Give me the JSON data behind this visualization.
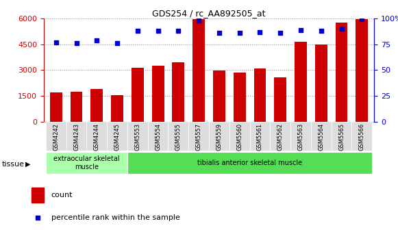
{
  "title": "GDS254 / rc_AA892505_at",
  "samples": [
    "GSM4242",
    "GSM4243",
    "GSM4244",
    "GSM4245",
    "GSM5553",
    "GSM5554",
    "GSM5555",
    "GSM5557",
    "GSM5559",
    "GSM5560",
    "GSM5561",
    "GSM5562",
    "GSM5563",
    "GSM5564",
    "GSM5565",
    "GSM5566"
  ],
  "counts": [
    1700,
    1750,
    1900,
    1550,
    3150,
    3250,
    3450,
    5950,
    2980,
    2850,
    3100,
    2600,
    4650,
    4500,
    5750,
    5950
  ],
  "percentiles": [
    77,
    76,
    79,
    76,
    88,
    88,
    88,
    98,
    86,
    86,
    87,
    86,
    89,
    88,
    90,
    99
  ],
  "bar_color": "#cc0000",
  "dot_color": "#0000cc",
  "ylim_left": [
    0,
    6000
  ],
  "ylim_right": [
    0,
    100
  ],
  "yticks_left": [
    0,
    1500,
    3000,
    4500,
    6000
  ],
  "yticks_right": [
    0,
    25,
    50,
    75,
    100
  ],
  "tissue_groups": [
    {
      "label": "extraocular skeletal\nmuscle",
      "start": 0,
      "end": 4,
      "color": "#aaffaa"
    },
    {
      "label": "tibialis anterior skeletal muscle",
      "start": 4,
      "end": 16,
      "color": "#55dd55"
    }
  ],
  "tissue_label": "tissue",
  "legend_count_label": "count",
  "legend_pct_label": "percentile rank within the sample",
  "bg_color": "#ffffff",
  "grid_color": "#999999",
  "tick_box_color": "#dddddd",
  "left_axis_color": "#cc0000",
  "right_axis_color": "#0000cc"
}
